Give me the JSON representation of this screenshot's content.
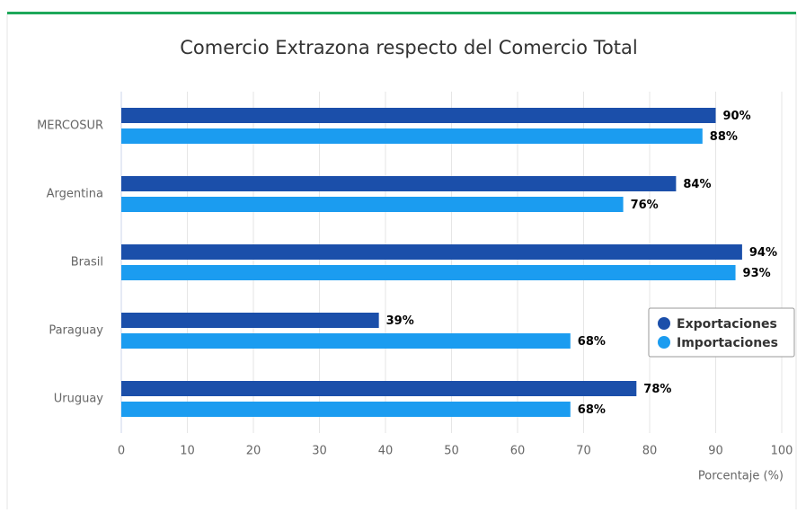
{
  "chart_data": {
    "type": "bar",
    "orientation": "horizontal",
    "title": "Comercio Extrazona respecto del Comercio Total",
    "xlabel": "Porcentaje (%)",
    "categories": [
      "MERCOSUR",
      "Argentina",
      "Brasil",
      "Paraguay",
      "Uruguay"
    ],
    "series": [
      {
        "name": "Exportaciones",
        "color": "#1b4faa",
        "values": [
          90,
          84,
          94,
          39,
          78
        ],
        "value_labels": [
          "90%",
          "84%",
          "94%",
          "39%",
          "78%"
        ]
      },
      {
        "name": "Importaciones",
        "color": "#1b9cf0",
        "values": [
          88,
          76,
          93,
          68,
          68
        ],
        "value_labels": [
          "88%",
          "76%",
          "93%",
          "68%",
          "68%"
        ]
      }
    ],
    "xlim": [
      0,
      100
    ],
    "xticks": [
      0,
      10,
      20,
      30,
      40,
      50,
      60,
      70,
      80,
      90,
      100
    ],
    "grid": true,
    "legend": "right"
  }
}
